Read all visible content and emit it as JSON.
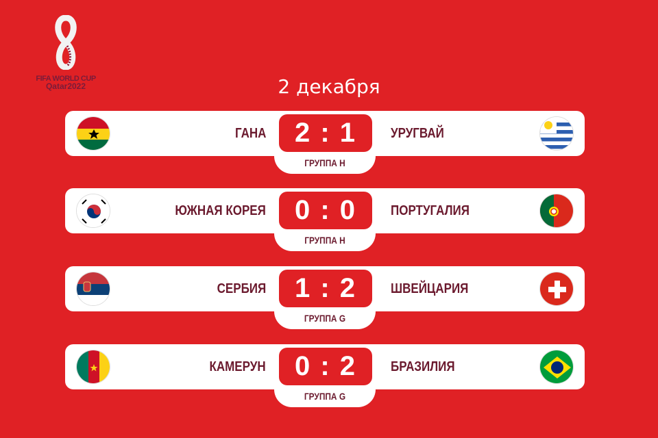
{
  "logo": {
    "line1": "FIFA WORLD CUP",
    "line2": "Qatar2022"
  },
  "date": "2 декабря",
  "matches": [
    {
      "home": "ГАНА",
      "away": "УРУГВАЙ",
      "score": "2 : 1",
      "group": "ГРУППА H",
      "home_flag": "ghana-flag",
      "away_flag": "uruguay-flag"
    },
    {
      "home": "ЮЖНАЯ КОРЕЯ",
      "away": "ПОРТУГАЛИЯ",
      "score": "0 : 0",
      "group": "ГРУППА H",
      "home_flag": "south-korea-flag",
      "away_flag": "portugal-flag"
    },
    {
      "home": "СЕРБИЯ",
      "away": "ШВЕЙЦАРИЯ",
      "score": "1 : 2",
      "group": "ГРУППА G",
      "home_flag": "serbia-flag",
      "away_flag": "switzerland-flag"
    },
    {
      "home": "КАМЕРУН",
      "away": "БРАЗИЛИЯ",
      "score": "0 : 2",
      "group": "ГРУППА G",
      "home_flag": "cameroon-flag",
      "away_flag": "brazil-flag"
    }
  ],
  "colors": {
    "background": "#e02125",
    "text": "#6b1a2e"
  }
}
